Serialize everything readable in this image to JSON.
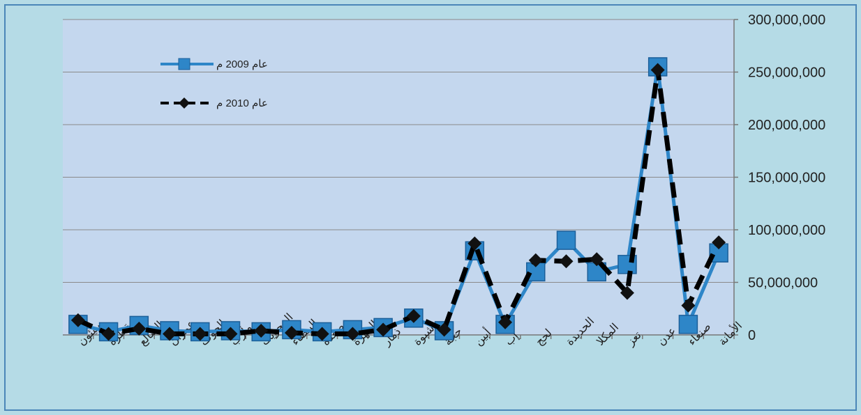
{
  "chart_data": {
    "type": "line",
    "title": "",
    "xlabel": "",
    "ylabel": "",
    "ylim": [
      0,
      300000000
    ],
    "yticks": [
      0,
      50000000,
      100000000,
      150000000,
      200000000,
      250000000,
      300000000
    ],
    "ytick_labels": [
      "0",
      "50,000,000",
      "100,000,000",
      "150,000,000",
      "200,000,000",
      "250,000,000",
      "300,000,000"
    ],
    "y_axis_side": "right",
    "grid": true,
    "legend_position": "top-left",
    "categories": [
      "سيئون",
      "سقطرة",
      "الضالع",
      "عمران",
      "الجوف",
      "مأرب",
      "المحويت",
      "البيضاء",
      "صعدة",
      "المهرة",
      "ذمار",
      "شبوة",
      "حجة",
      "أبين",
      "إب",
      "لحج",
      "الحديدة",
      "المكلا",
      "تعز",
      "عدن",
      "صنعاء",
      "الأمانة"
    ],
    "series": [
      {
        "name": "عام 2009 م",
        "color": "#2e86c8",
        "marker": "square",
        "line_style": "solid",
        "values": [
          10000000,
          3000000,
          9000000,
          4000000,
          3000000,
          4000000,
          3000000,
          5000000,
          3000000,
          5000000,
          7000000,
          16000000,
          4000000,
          80000000,
          10000000,
          60000000,
          90000000,
          60000000,
          67000000,
          255000000,
          10000000,
          78000000
        ]
      },
      {
        "name": "عام 2010 م",
        "color": "#000000",
        "marker": "diamond",
        "line_style": "dashed",
        "values": [
          14000000,
          1000000,
          6000000,
          1000000,
          1000000,
          1000000,
          4000000,
          2000000,
          1000000,
          1000000,
          5000000,
          18000000,
          5000000,
          87000000,
          12000000,
          71000000,
          70000000,
          72000000,
          40000000,
          252000000,
          28000000,
          88000000
        ]
      }
    ]
  }
}
